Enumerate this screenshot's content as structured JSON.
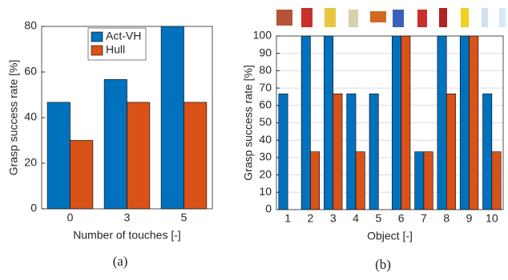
{
  "chart_data": [
    {
      "type": "bar",
      "caption": "(a)",
      "x_label": "Number of touches [-]",
      "y_label": "Grasp success rate [%]",
      "categories": [
        "0",
        "3",
        "5"
      ],
      "series": [
        {
          "name": "Act-VH",
          "color": "#0072bd",
          "values": [
            46.7,
            56.7,
            80
          ]
        },
        {
          "name": "Hull",
          "color": "#d95319",
          "values": [
            30,
            46.7,
            46.7
          ]
        }
      ],
      "ylim": [
        0,
        80
      ],
      "yticks": [
        0,
        20,
        40,
        60,
        80
      ],
      "grid": false,
      "legend": "top"
    },
    {
      "type": "bar",
      "caption": "(b)",
      "x_label": "Object [-]",
      "y_label": "Grasp success rate [%]",
      "categories": [
        "1",
        "2",
        "3",
        "4",
        "5",
        "6",
        "7",
        "8",
        "9",
        "10"
      ],
      "series": [
        {
          "color": "#0072bd",
          "values": [
            66.7,
            100,
            100,
            66.7,
            66.7,
            100,
            33.3,
            100,
            100,
            66.7
          ]
        },
        {
          "color": "#d95319",
          "values": [
            0,
            33.3,
            66.7,
            33.3,
            0,
            100,
            33.3,
            66.7,
            100,
            33.3
          ]
        }
      ],
      "ylim": [
        0,
        100
      ],
      "yticks": [
        0,
        10,
        20,
        30,
        40,
        50,
        60,
        70,
        80,
        90,
        100
      ],
      "grid": true
    }
  ]
}
